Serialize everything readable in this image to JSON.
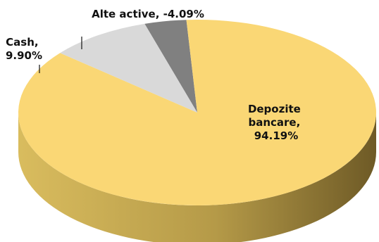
{
  "chart_data": {
    "type": "pie",
    "style": "3d",
    "slices": [
      {
        "name": "Depozite bancare",
        "value": 94.19,
        "label": "94.19%",
        "label_lines": [
          "Depozite",
          "bancare,",
          "94.19%"
        ],
        "color": "#FAD775",
        "side_color": "#C9A844"
      },
      {
        "name": "Cash",
        "value": 9.9,
        "label": "9.90%",
        "label_lines": [
          "Cash,",
          "9.90%"
        ],
        "color": "#D9D9D9",
        "side_color": "#A6A6A6"
      },
      {
        "name": "Alte active",
        "value": -4.09,
        "label": "-4.09%",
        "label_lines": [
          "Alte active, -4.09%"
        ],
        "color": "#808080",
        "side_color": "#595959"
      }
    ],
    "legend": "none"
  }
}
